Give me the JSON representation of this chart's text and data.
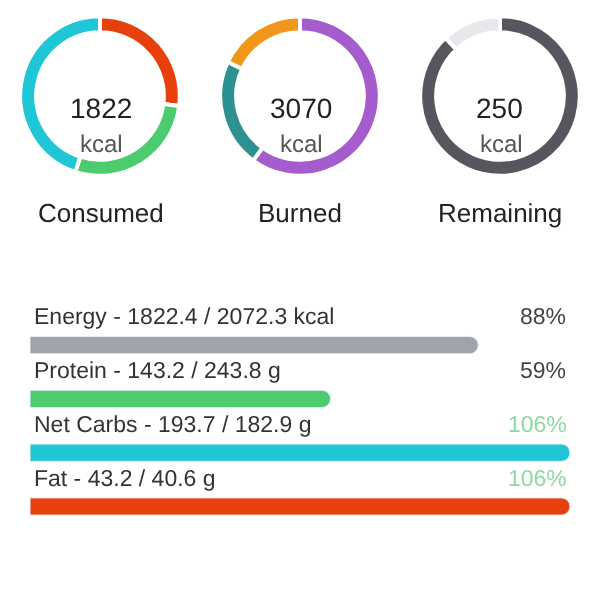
{
  "chart_data": [
    {
      "type": "donut",
      "title": "Consumed",
      "annotations": [
        "1822",
        "kcal"
      ],
      "categories": [
        null,
        null,
        null
      ],
      "values": [
        27,
        28,
        45
      ],
      "colors": [
        "#e8400c",
        "#4ccc6e",
        "#1ec6d6"
      ]
    },
    {
      "type": "donut",
      "title": "Burned",
      "annotations": [
        "3070",
        "kcal"
      ],
      "categories": [
        null,
        null,
        null
      ],
      "values": [
        60,
        22,
        18
      ],
      "colors": [
        "#a55ccc",
        "#2e9191",
        "#f0961a"
      ]
    },
    {
      "type": "donut",
      "title": "Remaining",
      "annotations": [
        "250",
        "kcal"
      ],
      "categories": [
        null,
        null
      ],
      "values": [
        88,
        12
      ],
      "colors": [
        "#55565e",
        "#e6e8ec"
      ]
    },
    {
      "type": "bar",
      "orientation": "horizontal",
      "categories": [
        "Energy - 1822.4 / 2072.3 kcal",
        "Protein - 143.2 / 243.8 g",
        "Net Carbs - 193.7 / 182.9 g",
        "Fat - 43.2 / 40.6 g"
      ],
      "values": [
        88,
        59,
        106,
        106
      ],
      "value_labels": [
        "88%",
        "59%",
        "106%",
        "106%"
      ],
      "colors": [
        "#a1a3ab",
        "#4ccc6e",
        "#1ec6d6",
        "#e8400c"
      ],
      "xlim": [
        0,
        106
      ],
      "tick_labels": false
    }
  ]
}
